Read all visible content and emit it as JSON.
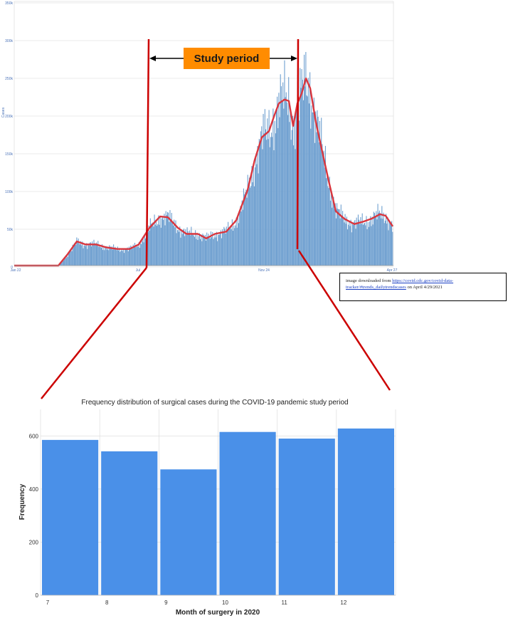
{
  "top_chart": {
    "ylabel": "Cases",
    "y_ticks": [
      "350k",
      "300k",
      "250k",
      "200k",
      "150k",
      "100k",
      "50k",
      "0"
    ],
    "x_ticks": [
      "Jan 22",
      "Jul",
      "Nov 24",
      "Apr 27"
    ],
    "study_period_label": "Study period",
    "colors": {
      "bars": "#6fa0d0",
      "average_line": "#d9363e",
      "markers": "#cc0000",
      "label_bg": "#ff8c00"
    }
  },
  "source_note": {
    "prefix": "image downloaded from ",
    "link": "https://covid.cdc.gov/covid-data-tracker/#trends_dailytrendscases",
    "suffix": " on April 4/29/2021"
  },
  "chart_data": {
    "type": "bar",
    "title": "Frequency distribution of surgical cases during the COVID-19 pandemic study period",
    "xlabel": "Month of surgery in 2020",
    "ylabel": "Frequency",
    "categories": [
      "7",
      "8",
      "9",
      "10",
      "11",
      "12"
    ],
    "values": [
      585,
      542,
      474,
      615,
      590,
      628
    ],
    "ylim": [
      0,
      700
    ],
    "y_ticks": [
      "0",
      "200",
      "400",
      "600"
    ],
    "grid": true,
    "bar_color": "#4a90e8"
  }
}
